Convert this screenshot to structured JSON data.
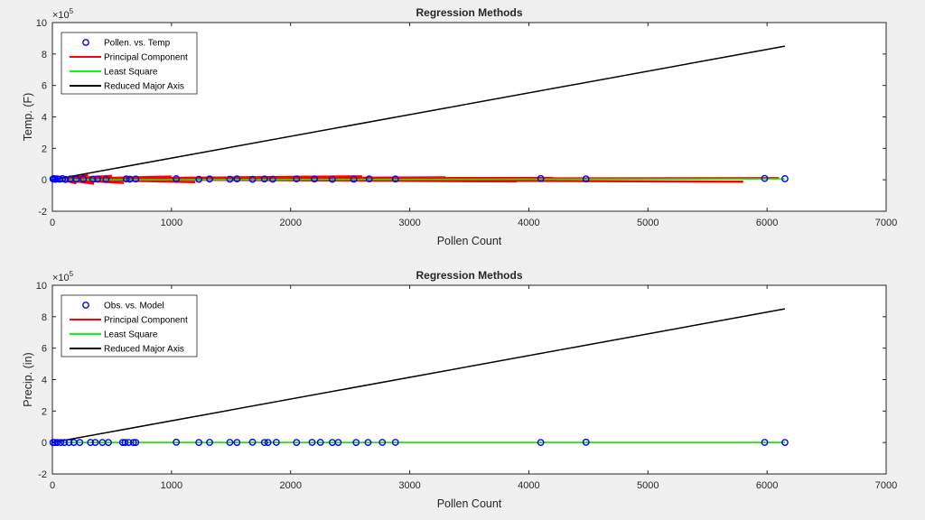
{
  "chart_data": [
    {
      "type": "scatter",
      "title": "Regression Methods",
      "xlabel": "Pollen Count",
      "ylabel": "Temp. (F)",
      "y_exponent_label": "×10",
      "y_exponent_power": "5",
      "xlim": [
        0,
        7000
      ],
      "ylim": [
        -2,
        10
      ],
      "y_scale": 100000,
      "x_ticks": [
        "0",
        "1000",
        "2000",
        "3000",
        "4000",
        "5000",
        "6000",
        "7000"
      ],
      "y_ticks": [
        "-2",
        "0",
        "2",
        "4",
        "6",
        "8",
        "10"
      ],
      "legend_position": "top-left",
      "series": [
        {
          "name": "Pollen. vs. Temp",
          "kind": "scatter",
          "color": "#0000ff",
          "points": [
            [
              5,
              0.05
            ],
            [
              12,
              0.08
            ],
            [
              25,
              0.03
            ],
            [
              40,
              0.06
            ],
            [
              60,
              0.04
            ],
            [
              85,
              0.07
            ],
            [
              110,
              0.02
            ],
            [
              150,
              0.05
            ],
            [
              200,
              0.03
            ],
            [
              260,
              0.06
            ],
            [
              340,
              0.04
            ],
            [
              380,
              0.05
            ],
            [
              450,
              0.03
            ],
            [
              620,
              0.06
            ],
            [
              650,
              0.04
            ],
            [
              700,
              0.05
            ],
            [
              1040,
              0.07
            ],
            [
              1230,
              0.03
            ],
            [
              1320,
              0.05
            ],
            [
              1490,
              0.04
            ],
            [
              1550,
              0.06
            ],
            [
              1680,
              0.03
            ],
            [
              1780,
              0.05
            ],
            [
              1850,
              0.04
            ],
            [
              2050,
              0.06
            ],
            [
              2200,
              0.05
            ],
            [
              2350,
              0.03
            ],
            [
              2530,
              0.04
            ],
            [
              2660,
              0.06
            ],
            [
              2880,
              0.05
            ],
            [
              4100,
              0.08
            ],
            [
              4480,
              0.06
            ],
            [
              5980,
              0.09
            ],
            [
              6150,
              0.07
            ]
          ]
        },
        {
          "name": "Principal Component",
          "kind": "fan",
          "color": "#ff0000",
          "pivot": [
            60,
            0.05
          ],
          "ends": [
            [
              300,
              0.3
            ],
            [
              500,
              0.25
            ],
            [
              1000,
              0.2
            ],
            [
              2600,
              0.22
            ],
            [
              3300,
              0.15
            ],
            [
              2200,
              0.18
            ],
            [
              4200,
              0.12
            ],
            [
              6100,
              0.1
            ],
            [
              5800,
              -0.12
            ],
            [
              3900,
              -0.1
            ],
            [
              1200,
              -0.15
            ],
            [
              600,
              -0.2
            ],
            [
              350,
              -0.25
            ],
            [
              200,
              -0.22
            ]
          ]
        },
        {
          "name": "Least Square",
          "kind": "line",
          "color": "#00ff00",
          "x": [
            0,
            6150
          ],
          "y": [
            0.0,
            0.06
          ]
        },
        {
          "name": "Reduced Major Axis",
          "kind": "line",
          "color": "#000000",
          "x": [
            0,
            6150
          ],
          "y": [
            0.0,
            8.5
          ]
        }
      ]
    },
    {
      "type": "scatter",
      "title": "Regression Methods",
      "xlabel": "Pollen Count",
      "ylabel": "Precip. (in)",
      "y_exponent_label": "×10",
      "y_exponent_power": "5",
      "xlim": [
        0,
        7000
      ],
      "ylim": [
        -2,
        10
      ],
      "y_scale": 100000,
      "x_ticks": [
        "0",
        "1000",
        "2000",
        "3000",
        "4000",
        "5000",
        "6000",
        "7000"
      ],
      "y_ticks": [
        "-2",
        "0",
        "2",
        "4",
        "6",
        "8",
        "10"
      ],
      "legend_position": "top-left",
      "series": [
        {
          "name": "Obs. vs. Model",
          "kind": "scatter",
          "color": "#0000ff",
          "points": [
            [
              5,
              0.0
            ],
            [
              20,
              0.0
            ],
            [
              40,
              0.0
            ],
            [
              70,
              0.0
            ],
            [
              100,
              0.0
            ],
            [
              140,
              0.0
            ],
            [
              180,
              0.0
            ],
            [
              230,
              0.0
            ],
            [
              320,
              0.0
            ],
            [
              360,
              0.0
            ],
            [
              420,
              0.0
            ],
            [
              470,
              0.0
            ],
            [
              590,
              0.0
            ],
            [
              610,
              0.0
            ],
            [
              640,
              0.0
            ],
            [
              680,
              0.0
            ],
            [
              700,
              0.0
            ],
            [
              1040,
              0.02
            ],
            [
              1230,
              0.0
            ],
            [
              1320,
              0.01
            ],
            [
              1490,
              0.01
            ],
            [
              1550,
              0.0
            ],
            [
              1680,
              0.02
            ],
            [
              1780,
              0.0
            ],
            [
              1810,
              0.0
            ],
            [
              1880,
              0.01
            ],
            [
              2050,
              0.0
            ],
            [
              2180,
              0.01
            ],
            [
              2250,
              0.01
            ],
            [
              2350,
              0.0
            ],
            [
              2400,
              0.0
            ],
            [
              2550,
              0.0
            ],
            [
              2650,
              0.0
            ],
            [
              2770,
              0.01
            ],
            [
              2880,
              0.01
            ],
            [
              4100,
              0.0
            ],
            [
              4480,
              0.02
            ],
            [
              5980,
              0.01
            ],
            [
              6150,
              0.0
            ]
          ]
        },
        {
          "name": "Principal Component",
          "kind": "line",
          "color": "#ff0000",
          "x": [
            0,
            6150
          ],
          "y": [
            0.0,
            0.0
          ]
        },
        {
          "name": "Least Square",
          "kind": "line",
          "color": "#00ff00",
          "x": [
            0,
            6150
          ],
          "y": [
            0.0,
            0.0
          ]
        },
        {
          "name": "Reduced Major Axis",
          "kind": "line",
          "color": "#000000",
          "x": [
            0,
            6150
          ],
          "y": [
            0.0,
            8.5
          ]
        }
      ]
    }
  ]
}
